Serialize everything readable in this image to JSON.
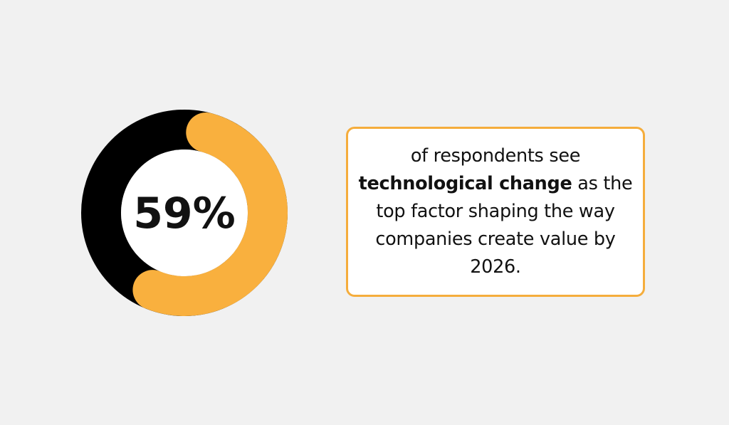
{
  "chart_data": {
    "type": "pie",
    "value_percent": 59,
    "center_label": "59%",
    "segments": [
      {
        "value": 59,
        "color": "#f9b03e"
      },
      {
        "value": 41,
        "color": "#000000"
      }
    ]
  },
  "callout": {
    "text_before": "of respondents see ",
    "text_bold": "technological change",
    "text_after": " as the top factor shaping the way companies create value by 2026.",
    "border_color": "#f5ad3c"
  },
  "colors": {
    "background": "#f1f1f1",
    "accent": "#f9b03e",
    "dark": "#000000"
  }
}
